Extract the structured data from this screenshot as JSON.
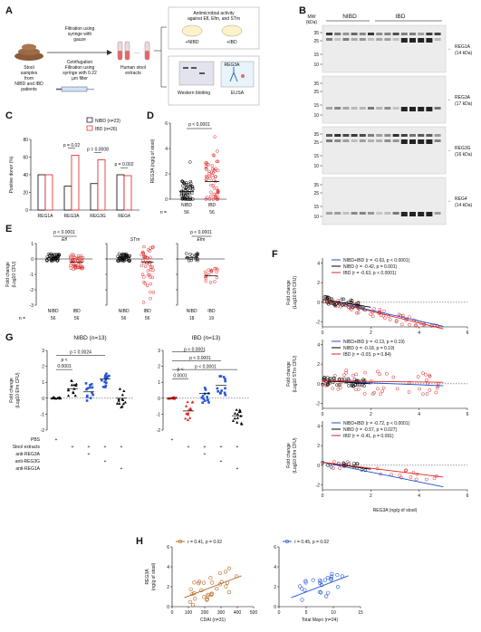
{
  "panel_letters": {
    "a": "A",
    "b": "B",
    "c": "C",
    "d": "D",
    "e": "E",
    "f": "F",
    "g": "G",
    "h": "H"
  },
  "panelA": {
    "stool_label": [
      "Stool",
      "samples",
      "from",
      "NIBD and IBD",
      "patients"
    ],
    "step1": [
      "Filtration using",
      "syringe with",
      "gauze"
    ],
    "step2": [
      "Cetrifugation",
      "Filtration using",
      "syringe with 0.22",
      "μm filter"
    ],
    "extracts": [
      "Human stool",
      "extracts"
    ],
    "antimicrobial": [
      "Antimicrobial activity",
      "against Efl, Efm, and STm"
    ],
    "plus_nibd": "+NIBD",
    "plus_ibd": "+IBD",
    "western": "Western blotting",
    "elisa": "ELISA",
    "reg3a_tag": "REG3A",
    "dots": "···"
  },
  "panelB": {
    "mw": [
      "MW",
      "(kDa)"
    ],
    "nibd": "NIBD",
    "ibd": "IBD",
    "blots": [
      {
        "ticks": [
          "35",
          "25",
          "15",
          "10"
        ],
        "label": [
          "REG1A",
          "(14 kDa)"
        ]
      },
      {
        "ticks": [
          "35",
          "25",
          "15",
          "10"
        ],
        "label": [
          "REG3A",
          "(17 kDa)"
        ]
      },
      {
        "ticks": [
          "35",
          "25",
          "15",
          "10"
        ],
        "label": [
          "REG3G",
          "(16 kDa)"
        ]
      },
      {
        "ticks": [
          "35",
          "25",
          "15",
          "10"
        ],
        "label": [
          "REG4",
          "(14 kDa)"
        ]
      }
    ]
  },
  "panelC": {
    "ylabel": "Positive donor (%)",
    "yticks": [
      "0",
      "20",
      "40",
      "60",
      "80"
    ],
    "legend": [
      "NIBD (n=23)",
      "IBD (n=26)"
    ],
    "pvals": [
      "p = 0.02",
      "p = 0.0008",
      "p = 0.002"
    ]
  },
  "panelD": {
    "ylabel": "REG3A (ng/g of stool)",
    "yticks": [
      "0",
      "2",
      "4",
      "6"
    ],
    "pval": "p < 0.0001",
    "xlabels": [
      "NIBD",
      "IBD"
    ],
    "n_prefix": "n =",
    "ns": [
      "56",
      "56"
    ]
  },
  "panelE": {
    "ylabel": [
      "Fold change",
      "(Log10 CFU)"
    ],
    "yticks": [
      "1",
      "0",
      "-1",
      "-2",
      "-3"
    ],
    "titles": [
      "Efl",
      "STm",
      "Efm"
    ],
    "pvals": [
      "p < 0.0001",
      "p < 0.0001"
    ],
    "xlabels": [
      "NIBD",
      "IBD"
    ],
    "n_prefix": "n =",
    "ns": [
      [
        "56",
        "56"
      ],
      [
        "56",
        "56"
      ],
      [
        "18",
        "19"
      ]
    ]
  },
  "panelF": {
    "ylabels": [
      [
        "Fold change",
        "(Log10 Efl CFU)"
      ],
      [
        "Fold change",
        "(Log10 STm CFU)"
      ],
      [
        "Fold change",
        "(Log10 Efm CFU)"
      ]
    ],
    "legends": [
      [
        "NIBD+IBD (r = -0.63, p < 0.0001)",
        "NIBD (r = -0.42, p = 0.001)",
        "IBD (r = -0.63, p < 0.0001)"
      ],
      [
        "NIBD+IBD (r = -0.13, p = 0.19)",
        "NIBD (r = -0.18, p = 0.19)",
        "IBD (r = -0.03, p = 0.84)"
      ],
      [
        "NIBD+IBD (r = -0.72, p < 0.0001)",
        "NIBD (r = -0.57, p = 0.027)",
        "IBD (r = -0.41, p = 0.091)"
      ]
    ],
    "xlabel": "REG3A (ng/g of stool)",
    "xticks": [
      "0",
      "2",
      "4",
      "6"
    ],
    "yticks": [
      "4",
      "2",
      "0",
      "-2"
    ]
  },
  "panelG": {
    "titles": [
      "NIBD (n=13)",
      "IBD (n=13)"
    ],
    "ylabel": [
      "Fold change",
      "(Log10 Efm CFU)"
    ],
    "yticks": [
      "3",
      "2",
      "1",
      "0",
      "-1",
      "-2"
    ],
    "pvals_nibd": [
      "p <",
      "0.0001",
      "p = 0.0024"
    ],
    "pvals_ibd": [
      "p < 0.0001",
      "p < 0.0001",
      "p < 0.0001",
      "p <",
      "0.0001"
    ],
    "row_labels": [
      "PBS",
      "Stool extracts",
      "anti-REG3A",
      "anti-REG3G",
      "anti-REG1A"
    ],
    "plus": "+"
  },
  "panelH": {
    "left_legend": "r = 0.41, p = 0.02",
    "right_legend": "r = 0.45, p = 0.02",
    "ylabel": [
      "REG3A",
      "(ng/g of stool)"
    ],
    "yticks": [
      "0",
      "2",
      "4",
      "6"
    ],
    "left_xlabel": "CDAI (n=31)",
    "left_xticks": [
      "0",
      "100",
      "200",
      "300",
      "400",
      "500"
    ],
    "right_xlabel": "Total Mayo (n=24)",
    "right_xticks": [
      "0",
      "5",
      "10",
      "15"
    ]
  },
  "colors": {
    "nibd": "#000000",
    "ibd": "#e02020",
    "combined": "#1f4fd0",
    "brown": "#b5651d",
    "blue": "#2457d6"
  }
}
